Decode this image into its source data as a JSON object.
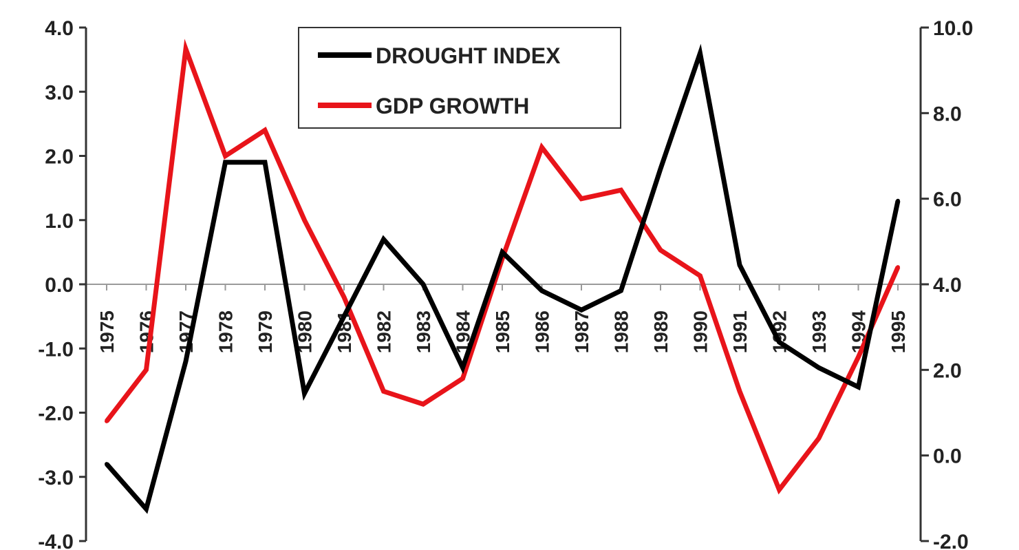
{
  "chart_data": {
    "type": "line",
    "categories": [
      "1975",
      "1976",
      "1977",
      "1978",
      "1979",
      "1980",
      "1981",
      "1982",
      "1983",
      "1984",
      "1985",
      "1986",
      "1987",
      "1988",
      "1989",
      "1990",
      "1991",
      "1992",
      "1993",
      "1994",
      "1995"
    ],
    "series": [
      {
        "name": "DROUGHT INDEX",
        "axis": "left",
        "color": "#000000",
        "values": [
          -2.8,
          -3.5,
          -1.2,
          1.9,
          1.9,
          -1.7,
          -0.5,
          0.7,
          0.0,
          -1.3,
          0.5,
          -0.1,
          -0.4,
          -0.1,
          1.8,
          3.6,
          0.3,
          -0.9,
          -1.3,
          -1.6,
          1.3
        ]
      },
      {
        "name": "GDP GROWTH",
        "axis": "right",
        "color": "#e8141a",
        "values": [
          0.8,
          2.0,
          9.5,
          7.0,
          7.6,
          5.5,
          3.7,
          1.5,
          1.2,
          1.8,
          4.6,
          7.2,
          6.0,
          6.2,
          4.8,
          4.2,
          1.5,
          -0.8,
          0.4,
          2.3,
          4.4
        ]
      }
    ],
    "y_left": {
      "ylim": [
        -4.0,
        4.0
      ],
      "ticks": [
        "4.0",
        "3.0",
        "2.0",
        "1.0",
        "0.0",
        "-1.0",
        "-2.0",
        "-3.0",
        "-4.0"
      ]
    },
    "y_right": {
      "ylim": [
        -2.0,
        10.0
      ],
      "ticks": [
        "10.0",
        "8.0",
        "6.0",
        "4.0",
        "2.0",
        "0.0",
        "-2.0"
      ]
    },
    "title": "",
    "xlabel": "",
    "ylabel": "",
    "zero_line": true,
    "grid": false,
    "legend": {
      "position": "top-center",
      "entries": [
        "DROUGHT INDEX",
        "GDP GROWTH"
      ]
    }
  }
}
